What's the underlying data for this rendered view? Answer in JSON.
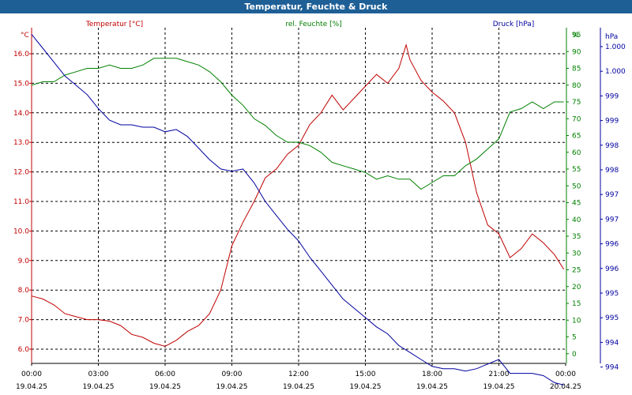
{
  "window": {
    "title": "Temperatur, Feuchte & Druck"
  },
  "chart_data": {
    "type": "line",
    "title": "Temperatur, Feuchte & Druck",
    "x_ticks": [
      {
        "time": "00:00",
        "date": "19.04.25"
      },
      {
        "time": "03:00",
        "date": "19.04.25"
      },
      {
        "time": "06:00",
        "date": "19.04.25"
      },
      {
        "time": "09:00",
        "date": "19.04.25"
      },
      {
        "time": "12:00",
        "date": "19.04.25"
      },
      {
        "time": "15:00",
        "date": "19.04.25"
      },
      {
        "time": "18:00",
        "date": "19.04.25"
      },
      {
        "time": "21:00",
        "date": "19.04.25"
      },
      {
        "time": "00:00",
        "date": "20.04.25"
      }
    ],
    "xlim": [
      "19.04.25 00:00",
      "20.04.25 00:00"
    ],
    "grid": true,
    "axes": {
      "temperature": {
        "unit": "°C",
        "side": "left",
        "ylim": [
          5.5,
          16.8
        ],
        "ticks": [
          "16.0",
          "15.0",
          "14.0",
          "13.0",
          "12.0",
          "11.0",
          "10.0",
          "9.0",
          "8.0",
          "7.0",
          "6.0"
        ]
      },
      "humidity": {
        "unit": "%",
        "side": "right",
        "ylim": [
          0,
          96
        ],
        "ticks": [
          "95",
          "90",
          "85",
          "80",
          "75",
          "70",
          "65",
          "60",
          "55",
          "50",
          "45",
          "40",
          "35",
          "30",
          "25",
          "20",
          "15",
          "10",
          "5",
          "0"
        ]
      },
      "pressure": {
        "unit": "hPa",
        "side": "right",
        "ticks": [
          "1.000",
          "1.000",
          "999",
          "999",
          "998",
          "998",
          "997",
          "997",
          "996",
          "996",
          "995",
          "995",
          "994",
          "994"
        ]
      }
    },
    "series": [
      {
        "name": "Temperatur [°C]",
        "axis": "temperature",
        "color": "#c00000",
        "x": [
          "00:00",
          "00:30",
          "01:00",
          "01:30",
          "02:00",
          "02:30",
          "03:00",
          "03:30",
          "04:00",
          "04:30",
          "05:00",
          "05:30",
          "06:00",
          "06:30",
          "07:00",
          "07:30",
          "08:00",
          "08:30",
          "09:00",
          "09:30",
          "10:00",
          "10:30",
          "11:00",
          "11:30",
          "12:00",
          "12:30",
          "13:00",
          "13:30",
          "14:00",
          "14:30",
          "15:00",
          "15:30",
          "16:00",
          "16:30",
          "16:50",
          "17:00",
          "17:30",
          "18:00",
          "18:30",
          "19:00",
          "19:30",
          "20:00",
          "20:30",
          "21:00",
          "21:30",
          "22:00",
          "22:30",
          "23:00",
          "23:30",
          "23:55"
        ],
        "values": [
          7.8,
          7.7,
          7.5,
          7.2,
          7.1,
          7.0,
          7.0,
          6.95,
          6.8,
          6.5,
          6.4,
          6.2,
          6.1,
          6.3,
          6.6,
          6.8,
          7.2,
          8.0,
          9.5,
          10.3,
          11.0,
          11.8,
          12.1,
          12.6,
          12.9,
          13.6,
          14.0,
          14.6,
          14.1,
          14.5,
          14.9,
          15.3,
          15.0,
          15.5,
          16.3,
          15.8,
          15.1,
          14.7,
          14.4,
          14.0,
          13.0,
          11.3,
          10.2,
          9.9,
          9.1,
          9.4,
          9.9,
          9.6,
          9.2,
          8.7
        ]
      },
      {
        "name": "rel. Feuchte [%]",
        "axis": "humidity",
        "color": "#008000",
        "x": [
          "00:00",
          "00:30",
          "01:00",
          "01:30",
          "02:00",
          "02:30",
          "03:00",
          "03:30",
          "04:00",
          "04:30",
          "05:00",
          "05:30",
          "06:00",
          "06:30",
          "07:00",
          "07:30",
          "08:00",
          "08:30",
          "09:00",
          "09:30",
          "10:00",
          "10:30",
          "11:00",
          "11:30",
          "12:00",
          "12:30",
          "13:00",
          "13:30",
          "14:00",
          "14:30",
          "15:00",
          "15:30",
          "16:00",
          "16:30",
          "17:00",
          "17:30",
          "18:00",
          "18:30",
          "19:00",
          "19:30",
          "20:00",
          "20:30",
          "21:00",
          "21:30",
          "22:00",
          "22:30",
          "23:00",
          "23:30",
          "23:55"
        ],
        "values": [
          80,
          81,
          81,
          83,
          84,
          85,
          85,
          86,
          85,
          85,
          86,
          88,
          88,
          88,
          87,
          86,
          84,
          81,
          77,
          74,
          70,
          68,
          65,
          63,
          63,
          62,
          60,
          57,
          56,
          55,
          54,
          52,
          53,
          52,
          52,
          49,
          51,
          53,
          53,
          56,
          58,
          61,
          64,
          72,
          73,
          75,
          73,
          75,
          75
        ]
      },
      {
        "name": "Druck [hPa]",
        "axis": "pressure",
        "color": "#0000a0",
        "x": [
          "00:00",
          "00:30",
          "01:00",
          "01:30",
          "02:00",
          "02:30",
          "03:00",
          "03:30",
          "04:00",
          "04:30",
          "05:00",
          "05:30",
          "06:00",
          "06:30",
          "07:00",
          "07:30",
          "08:00",
          "08:30",
          "09:00",
          "09:30",
          "10:00",
          "10:30",
          "11:00",
          "11:30",
          "12:00",
          "12:30",
          "13:00",
          "13:30",
          "14:00",
          "14:30",
          "15:00",
          "15:30",
          "16:00",
          "16:30",
          "17:00",
          "17:30",
          "18:00",
          "18:30",
          "19:00",
          "19:30",
          "20:00",
          "20:30",
          "21:00",
          "21:30",
          "22:00",
          "22:30",
          "23:00",
          "23:30",
          "23:55"
        ],
        "values": [
          1000.8,
          1000.5,
          1000.2,
          999.9,
          999.7,
          999.5,
          999.2,
          998.95,
          998.85,
          998.85,
          998.8,
          998.8,
          998.7,
          998.75,
          998.6,
          998.35,
          998.1,
          997.9,
          997.85,
          997.9,
          997.6,
          997.2,
          996.9,
          996.6,
          996.35,
          996.0,
          995.7,
          995.4,
          995.1,
          994.9,
          994.7,
          994.5,
          994.35,
          994.1,
          993.95,
          993.8,
          993.65,
          993.6,
          993.6,
          993.55,
          993.6,
          993.7,
          993.8,
          993.5,
          993.5,
          993.5,
          993.45,
          993.3,
          993.25
        ]
      }
    ]
  }
}
